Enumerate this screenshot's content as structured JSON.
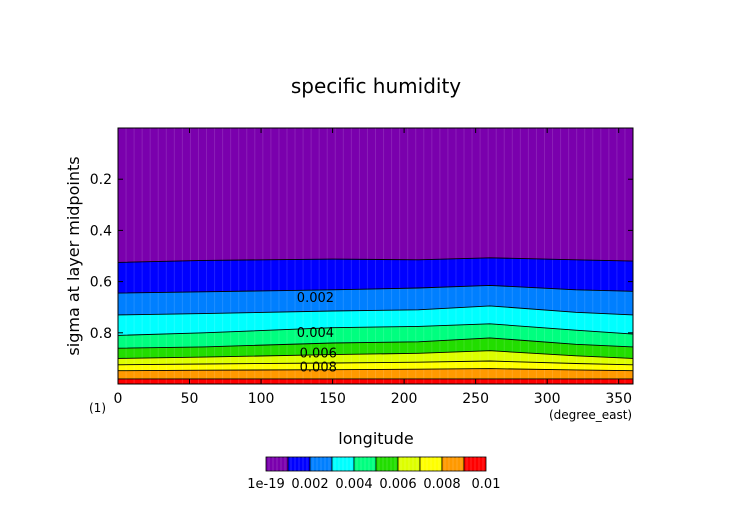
{
  "chart_data": {
    "type": "heatmap",
    "title": "specific humidity",
    "xlabel": "longitude",
    "ylabel": "sigma at layer midpoints",
    "x_unit": "(degree_east)",
    "y_unit": "(1)",
    "xlim": [
      0,
      360
    ],
    "ylim": [
      0.0,
      1.0
    ],
    "y_inverted": true,
    "x_ticks": [
      "0",
      "50",
      "100",
      "150",
      "200",
      "250",
      "300",
      "350"
    ],
    "x_tick_values": [
      0,
      50,
      100,
      150,
      200,
      250,
      300,
      350
    ],
    "y_ticks": [
      "0.2",
      "0.4",
      "0.6",
      "0.8"
    ],
    "y_tick_values": [
      0.2,
      0.4,
      0.6,
      0.8
    ],
    "levels": [
      0,
      0.001,
      0.002,
      0.003,
      0.004,
      0.005,
      0.006,
      0.007,
      0.008,
      0.009,
      0.01
    ],
    "colors": [
      "#7a00ad",
      "#0000ff",
      "#007fff",
      "#00ffff",
      "#00ff7f",
      "#22dd00",
      "#ddff00",
      "#ffff00",
      "#ff9900",
      "#ff0000",
      "#ff9999"
    ],
    "contour_labels": [
      {
        "text": "0.002",
        "x": 138,
        "y": 0.665
      },
      {
        "text": "0.004",
        "x": 138,
        "y": 0.8
      },
      {
        "text": "0.006",
        "x": 140,
        "y": 0.88
      },
      {
        "text": "0.008",
        "x": 140,
        "y": 0.935
      }
    ],
    "boundary_sigma": [
      {
        "level": 0.001,
        "x": [
          0,
          60,
          150,
          210,
          260,
          320,
          360
        ],
        "sigma": [
          0.525,
          0.517,
          0.512,
          0.515,
          0.507,
          0.515,
          0.52
        ]
      },
      {
        "level": 0.002,
        "x": [
          0,
          60,
          150,
          210,
          260,
          320,
          360
        ],
        "sigma": [
          0.645,
          0.64,
          0.632,
          0.625,
          0.615,
          0.632,
          0.638
        ]
      },
      {
        "level": 0.003,
        "x": [
          0,
          60,
          150,
          210,
          260,
          320,
          360
        ],
        "sigma": [
          0.73,
          0.725,
          0.715,
          0.71,
          0.695,
          0.72,
          0.73
        ]
      },
      {
        "level": 0.004,
        "x": [
          0,
          60,
          150,
          210,
          260,
          320,
          360
        ],
        "sigma": [
          0.81,
          0.8,
          0.78,
          0.775,
          0.765,
          0.79,
          0.805
        ]
      },
      {
        "level": 0.005,
        "x": [
          0,
          60,
          150,
          210,
          260,
          320,
          360
        ],
        "sigma": [
          0.86,
          0.855,
          0.84,
          0.835,
          0.82,
          0.845,
          0.855
        ]
      },
      {
        "level": 0.006,
        "x": [
          0,
          60,
          150,
          210,
          260,
          320,
          360
        ],
        "sigma": [
          0.9,
          0.895,
          0.885,
          0.88,
          0.87,
          0.89,
          0.9
        ]
      },
      {
        "level": 0.007,
        "x": [
          0,
          60,
          150,
          210,
          260,
          320,
          360
        ],
        "sigma": [
          0.925,
          0.922,
          0.918,
          0.915,
          0.91,
          0.92,
          0.925
        ]
      },
      {
        "level": 0.008,
        "x": [
          0,
          60,
          150,
          210,
          260,
          320,
          360
        ],
        "sigma": [
          0.948,
          0.946,
          0.944,
          0.942,
          0.94,
          0.945,
          0.948
        ]
      },
      {
        "level": 0.009,
        "x": [
          0,
          60,
          150,
          210,
          260,
          320,
          360
        ],
        "sigma": [
          0.98,
          0.98,
          0.98,
          0.98,
          0.98,
          0.98,
          0.98
        ]
      }
    ],
    "colorbar": {
      "labels": [
        "1e-19",
        "0.002",
        "0.004",
        "0.006",
        "0.008",
        "0.01"
      ],
      "label_values": [
        0,
        0.002,
        0.004,
        0.006,
        0.008,
        0.01
      ]
    },
    "grid": false,
    "legend": "bottom colorbar"
  }
}
